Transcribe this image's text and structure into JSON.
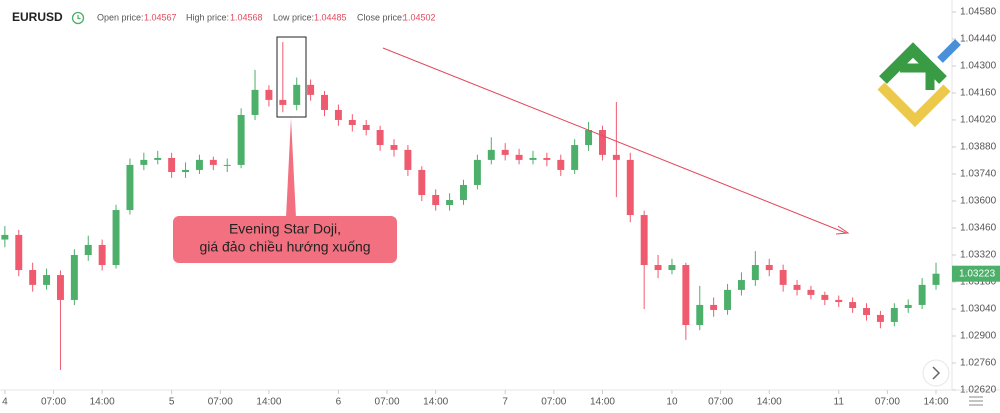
{
  "header": {
    "symbol": "EURUSD",
    "open_label": "Open price:",
    "open": "1.04567",
    "high_label": "High price:",
    "high": "1.04568",
    "low_label": "Low price:",
    "low": "1.04485",
    "close_label": "Close price:",
    "close": "1.04502"
  },
  "annotation": [
    "Evening Star Doji,",
    "giá đảo chiều hướng xuống"
  ],
  "chart_data": {
    "type": "candlestick",
    "up_color": "#4caf6a",
    "down_color": "#ef5a6f",
    "x": [
      0,
      2,
      4,
      6,
      8,
      10,
      12,
      14,
      16,
      18,
      20,
      22,
      24,
      26,
      28,
      30,
      32,
      34,
      36,
      38,
      40,
      42,
      44,
      46,
      48,
      50,
      52,
      54,
      56,
      58,
      60,
      62,
      64,
      66,
      68,
      70,
      72,
      74,
      76,
      78,
      80,
      82,
      84,
      86,
      88,
      90,
      92,
      94,
      96,
      98,
      100,
      102,
      104,
      106,
      108,
      110,
      112,
      114,
      116,
      118,
      120,
      122,
      124,
      126,
      128,
      130,
      132,
      134
    ],
    "open": [
      1.034,
      1.03424,
      1.03242,
      1.03165,
      1.03216,
      1.03087,
      1.0332,
      1.03372,
      1.03268,
      1.03553,
      1.03787,
      1.03813,
      1.03823,
      1.0375,
      1.03761,
      1.03813,
      1.03787,
      1.03787,
      1.04046,
      1.04176,
      1.04124,
      1.04098,
      1.04202,
      1.0415,
      1.04072,
      1.0402,
      1.03994,
      1.03968,
      1.0389,
      1.03865,
      1.03761,
      1.03631,
      1.03579,
      1.03605,
      1.03683,
      1.03813,
      1.03865,
      1.03839,
      1.03813,
      1.03823,
      1.03813,
      1.03761,
      1.0389,
      1.03968,
      1.03839,
      1.03813,
      1.03527,
      1.03268,
      1.03242,
      1.03268,
      1.02957,
      1.03061,
      1.03035,
      1.03139,
      1.0319,
      1.03268,
      1.03242,
      1.03165,
      1.03139,
      1.03113,
      1.03087,
      1.03076,
      1.03045,
      1.03009,
      1.02973,
      1.03045,
      1.03061,
      1.03165
    ],
    "high": [
      1.0347,
      1.0345,
      1.0328,
      1.0325,
      1.0324,
      1.0335,
      1.0342,
      1.034,
      1.0358,
      1.0382,
      1.0385,
      1.0386,
      1.0385,
      1.038,
      1.0384,
      1.0383,
      1.0382,
      1.0408,
      1.0428,
      1.042,
      1.04424,
      1.0424,
      1.0423,
      1.0417,
      1.041,
      1.0405,
      1.0402,
      1.0399,
      1.0392,
      1.0389,
      1.0378,
      1.0366,
      1.0364,
      1.0371,
      1.0384,
      1.0393,
      1.039,
      1.0387,
      1.0386,
      1.0385,
      1.0384,
      1.0392,
      1.0401,
      1.0399,
      1.04113,
      1.0385,
      1.0355,
      1.0332,
      1.033,
      1.0328,
      1.0316,
      1.031,
      1.0317,
      1.0323,
      1.0334,
      1.033,
      1.0327,
      1.0319,
      1.0316,
      1.0313,
      1.0311,
      1.031,
      1.0307,
      1.0303,
      1.0307,
      1.0309,
      1.032,
      1.0328
    ],
    "low": [
      1.0336,
      1.0321,
      1.0313,
      1.0314,
      1.02724,
      1.0306,
      1.0329,
      1.0324,
      1.0325,
      1.0353,
      1.0376,
      1.0379,
      1.0372,
      1.0372,
      1.0374,
      1.0376,
      1.0375,
      1.0377,
      1.0402,
      1.0409,
      1.0406,
      1.0407,
      1.0412,
      1.0404,
      1.0399,
      1.0396,
      1.0394,
      1.0386,
      1.0383,
      1.0373,
      1.036,
      1.0355,
      1.0355,
      1.0358,
      1.0366,
      1.0379,
      1.0381,
      1.0379,
      1.0379,
      1.0378,
      1.0373,
      1.0374,
      1.0386,
      1.0381,
      1.0362,
      1.0349,
      1.0304,
      1.032,
      1.0322,
      1.0288,
      1.0293,
      1.03,
      1.0301,
      1.0311,
      1.0316,
      1.0321,
      1.0313,
      1.0311,
      1.0309,
      1.0306,
      1.0305,
      1.0302,
      1.0298,
      1.0294,
      1.0295,
      1.0302,
      1.0304,
      1.0314
    ],
    "close": [
      1.03424,
      1.03242,
      1.03165,
      1.03216,
      1.03087,
      1.0332,
      1.03372,
      1.03268,
      1.03553,
      1.03787,
      1.03813,
      1.03823,
      1.0375,
      1.03761,
      1.03813,
      1.03787,
      1.03787,
      1.04046,
      1.04176,
      1.04124,
      1.04098,
      1.04202,
      1.0415,
      1.04072,
      1.0402,
      1.03994,
      1.03968,
      1.0389,
      1.03865,
      1.03761,
      1.03631,
      1.03579,
      1.03605,
      1.03683,
      1.03813,
      1.03865,
      1.03839,
      1.03813,
      1.03823,
      1.03813,
      1.03761,
      1.0389,
      1.03968,
      1.03839,
      1.03813,
      1.03527,
      1.03268,
      1.03242,
      1.03268,
      1.02957,
      1.03061,
      1.03035,
      1.03139,
      1.0319,
      1.03268,
      1.03242,
      1.03165,
      1.03139,
      1.03113,
      1.03087,
      1.03076,
      1.03045,
      1.03009,
      1.02973,
      1.03045,
      1.03061,
      1.03165,
      1.03223
    ],
    "xlim": [
      -0.7,
      136.3
    ],
    "xticks": [
      {
        "value": 0,
        "label": "4"
      },
      {
        "value": 7,
        "label": "07:00"
      },
      {
        "value": 14,
        "label": "14:00"
      },
      {
        "value": 24,
        "label": "5"
      },
      {
        "value": 31,
        "label": "07:00"
      },
      {
        "value": 38,
        "label": "14:00"
      },
      {
        "value": 48,
        "label": "6"
      },
      {
        "value": 55,
        "label": "07:00"
      },
      {
        "value": 62,
        "label": "14:00"
      },
      {
        "value": 72,
        "label": "7"
      },
      {
        "value": 79,
        "label": "07:00"
      },
      {
        "value": 86,
        "label": "14:00"
      },
      {
        "value": 96,
        "label": "10"
      },
      {
        "value": 103,
        "label": "07:00"
      },
      {
        "value": 110,
        "label": "14:00"
      },
      {
        "value": 120,
        "label": "11"
      },
      {
        "value": 127,
        "label": "07:00"
      },
      {
        "value": 134,
        "label": "14:00"
      }
    ],
    "ylim": [
      1.0262,
      1.04642
    ],
    "yticks": [
      {
        "value": 1.0458,
        "label": "1.04580"
      },
      {
        "value": 1.0444,
        "label": "1.04440"
      },
      {
        "value": 1.043,
        "label": "1.04300"
      },
      {
        "value": 1.0416,
        "label": "1.04160"
      },
      {
        "value": 1.0402,
        "label": "1.04020"
      },
      {
        "value": 1.0388,
        "label": "1.03880"
      },
      {
        "value": 1.0374,
        "label": "1.03740"
      },
      {
        "value": 1.036,
        "label": "1.03600"
      },
      {
        "value": 1.0346,
        "label": "1.03460"
      },
      {
        "value": 1.0332,
        "label": "1.03320"
      },
      {
        "value": 1.0318,
        "label": "1.03180"
      },
      {
        "value": 1.0304,
        "label": "1.03040"
      },
      {
        "value": 1.029,
        "label": "1.02900"
      },
      {
        "value": 1.0276,
        "label": "1.02760"
      },
      {
        "value": 1.0262,
        "label": "1.02620"
      }
    ]
  }
}
